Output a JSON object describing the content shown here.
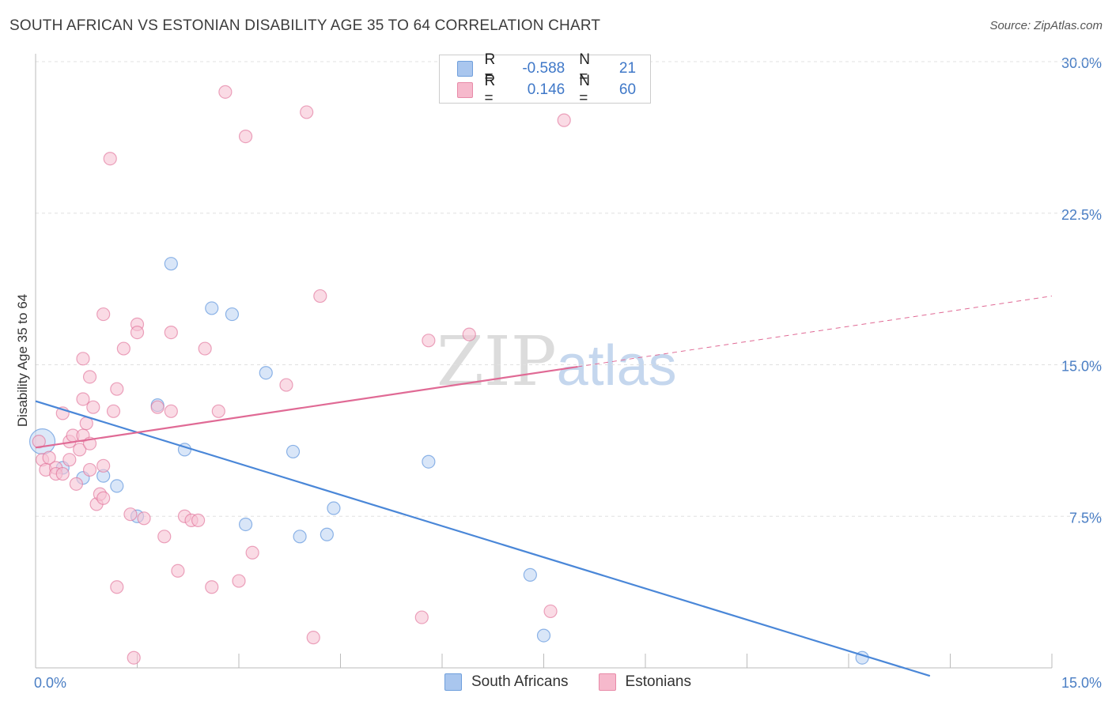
{
  "title": "SOUTH AFRICAN VS ESTONIAN DISABILITY AGE 35 TO 64 CORRELATION CHART",
  "source": "Source: ZipAtlas.com",
  "watermark": {
    "zip": "ZIP",
    "atlas": "atlas"
  },
  "legend_top": {
    "rows": [
      {
        "r_label": "R =",
        "r_value": "-0.588",
        "n_label": "N =",
        "n_value": "21",
        "color": "#a9c6ee",
        "border": "#6f9fdc"
      },
      {
        "r_label": "R =",
        "r_value": "0.146",
        "n_label": "N =",
        "n_value": "60",
        "color": "#f6b9cc",
        "border": "#e88aa8"
      }
    ]
  },
  "bottom_legend": [
    "South Africans",
    "Estonians"
  ],
  "chart_data": {
    "type": "scatter",
    "ylabel": "Disability Age 35 to 64",
    "xlim": [
      0,
      15
    ],
    "ylim": [
      0,
      30
    ],
    "x_ticks": [
      "0.0%",
      "15.0%"
    ],
    "y_ticks": [
      {
        "value": 7.5,
        "label": "7.5%"
      },
      {
        "value": 15,
        "label": "15.0%"
      },
      {
        "value": 22.5,
        "label": "22.5%"
      },
      {
        "value": 30,
        "label": "30.0%"
      }
    ],
    "grid": true,
    "series": [
      {
        "name": "South Africans",
        "color": "#4a87d8",
        "fill": "#c0d6f3",
        "points": [
          [
            0.1,
            11.2
          ],
          [
            0.4,
            9.9
          ],
          [
            0.7,
            9.4
          ],
          [
            1.0,
            9.5
          ],
          [
            1.2,
            9.0
          ],
          [
            1.5,
            7.5
          ],
          [
            1.8,
            13.0
          ],
          [
            2.0,
            20.0
          ],
          [
            2.2,
            10.8
          ],
          [
            2.6,
            17.8
          ],
          [
            2.9,
            17.5
          ],
          [
            3.1,
            7.1
          ],
          [
            3.4,
            14.6
          ],
          [
            3.8,
            10.7
          ],
          [
            3.9,
            6.5
          ],
          [
            4.3,
            6.6
          ],
          [
            4.4,
            7.9
          ],
          [
            5.8,
            10.2
          ],
          [
            7.3,
            4.6
          ],
          [
            7.5,
            1.6
          ],
          [
            12.2,
            0.5
          ]
        ],
        "trend": {
          "x0": 0.0,
          "y0": 13.2,
          "x1": 13.2,
          "y1": -0.4
        }
      },
      {
        "name": "Estonians",
        "color": "#e06a95",
        "fill": "#f6c3d3",
        "points": [
          [
            0.1,
            10.3
          ],
          [
            0.15,
            9.8
          ],
          [
            0.2,
            10.4
          ],
          [
            0.3,
            9.9
          ],
          [
            0.3,
            9.6
          ],
          [
            0.4,
            9.6
          ],
          [
            0.4,
            12.6
          ],
          [
            0.5,
            11.2
          ],
          [
            0.5,
            10.3
          ],
          [
            0.55,
            11.5
          ],
          [
            0.6,
            9.1
          ],
          [
            0.65,
            10.8
          ],
          [
            0.7,
            13.3
          ],
          [
            0.7,
            15.3
          ],
          [
            0.7,
            11.5
          ],
          [
            0.75,
            12.1
          ],
          [
            0.8,
            14.4
          ],
          [
            0.8,
            11.1
          ],
          [
            0.8,
            9.8
          ],
          [
            0.85,
            12.9
          ],
          [
            0.9,
            8.1
          ],
          [
            0.95,
            8.6
          ],
          [
            1.0,
            10.0
          ],
          [
            1.0,
            8.4
          ],
          [
            1.0,
            17.5
          ],
          [
            1.1,
            25.2
          ],
          [
            1.15,
            12.7
          ],
          [
            1.2,
            13.8
          ],
          [
            1.2,
            4.0
          ],
          [
            1.3,
            15.8
          ],
          [
            1.4,
            7.6
          ],
          [
            1.45,
            0.5
          ],
          [
            1.5,
            17.0
          ],
          [
            1.5,
            16.6
          ],
          [
            1.6,
            7.4
          ],
          [
            1.8,
            12.9
          ],
          [
            1.9,
            6.5
          ],
          [
            2.0,
            12.7
          ],
          [
            2.0,
            16.6
          ],
          [
            2.1,
            4.8
          ],
          [
            2.2,
            7.5
          ],
          [
            2.3,
            7.3
          ],
          [
            2.4,
            7.3
          ],
          [
            2.5,
            15.8
          ],
          [
            2.6,
            4.0
          ],
          [
            2.7,
            12.7
          ],
          [
            2.8,
            28.5
          ],
          [
            3.0,
            4.3
          ],
          [
            3.1,
            26.3
          ],
          [
            3.2,
            5.7
          ],
          [
            3.7,
            14.0
          ],
          [
            4.0,
            27.5
          ],
          [
            4.1,
            1.5
          ],
          [
            4.2,
            18.4
          ],
          [
            5.7,
            2.5
          ],
          [
            5.8,
            16.2
          ],
          [
            6.4,
            16.5
          ],
          [
            7.6,
            2.8
          ],
          [
            7.8,
            27.1
          ],
          [
            0.05,
            11.2
          ]
        ],
        "trend": {
          "x0": 0.0,
          "y0": 10.9,
          "x1": 8.0,
          "y1": 14.9
        },
        "trend_dashed": {
          "x0": 8.0,
          "y0": 14.9,
          "x1": 15.0,
          "y1": 18.4
        }
      }
    ]
  }
}
